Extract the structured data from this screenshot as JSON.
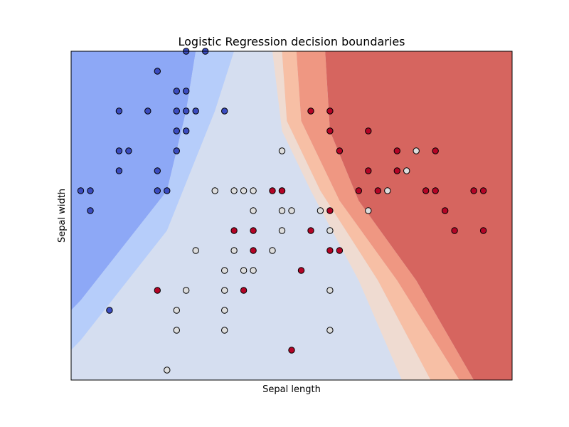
{
  "chart_data": {
    "type": "scatter",
    "title": "Logistic Regression decision boundaries",
    "xlabel": "Sepal length",
    "ylabel": "Sepal width",
    "xlim": [
      3.8,
      8.4
    ],
    "ylim": [
      1.5,
      4.8
    ],
    "xticks": [],
    "yticks": [],
    "grid": false,
    "legend": "none",
    "class_colors": [
      "#3b4cc0",
      "#dddddd",
      "#b40426"
    ],
    "region_colors": [
      "#7185df",
      "#8da8f6",
      "#b6cdfa",
      "#d5def0",
      "#efdbd1",
      "#f7bfa5",
      "#ef9782",
      "#d6655f"
    ],
    "regions": [
      {
        "level": 1,
        "polygon": [
          [
            3.8,
            2.2
          ],
          [
            3.9,
            2.3
          ],
          [
            4.8,
            3.4
          ],
          [
            5.0,
            4.2
          ],
          [
            5.1,
            4.8
          ],
          [
            3.8,
            4.8
          ]
        ]
      },
      {
        "level": 2,
        "polygon": [
          [
            3.8,
            1.8
          ],
          [
            3.9,
            1.9
          ],
          [
            4.8,
            3.0
          ],
          [
            5.3,
            4.2
          ],
          [
            5.5,
            4.8
          ],
          [
            5.1,
            4.8
          ],
          [
            5.0,
            4.2
          ],
          [
            4.8,
            3.4
          ],
          [
            3.9,
            2.3
          ],
          [
            3.8,
            2.2
          ]
        ]
      },
      {
        "level": 3,
        "polygon": [
          [
            3.8,
            1.5
          ],
          [
            7.25,
            1.5
          ],
          [
            6.8,
            2.5
          ],
          [
            6.3,
            3.4
          ],
          [
            6.0,
            4.0
          ],
          [
            5.9,
            4.8
          ],
          [
            5.5,
            4.8
          ],
          [
            5.3,
            4.2
          ],
          [
            4.8,
            3.0
          ],
          [
            3.9,
            1.9
          ],
          [
            3.8,
            1.8
          ]
        ]
      },
      {
        "level": 4,
        "polygon": [
          [
            7.25,
            1.5
          ],
          [
            7.55,
            1.5
          ],
          [
            7.0,
            2.5
          ],
          [
            6.4,
            3.4
          ],
          [
            6.05,
            4.1
          ],
          [
            6.0,
            4.8
          ],
          [
            5.9,
            4.8
          ],
          [
            6.0,
            4.0
          ],
          [
            6.3,
            3.4
          ],
          [
            6.8,
            2.5
          ]
        ]
      },
      {
        "level": 5,
        "polygon": [
          [
            7.55,
            1.5
          ],
          [
            7.85,
            1.5
          ],
          [
            7.2,
            2.5
          ],
          [
            6.6,
            3.3
          ],
          [
            6.2,
            4.1
          ],
          [
            6.15,
            4.8
          ],
          [
            6.0,
            4.8
          ],
          [
            6.05,
            4.1
          ],
          [
            6.4,
            3.4
          ],
          [
            7.0,
            2.5
          ]
        ]
      },
      {
        "level": 6,
        "polygon": [
          [
            7.85,
            1.5
          ],
          [
            8.0,
            1.5
          ],
          [
            7.4,
            2.5
          ],
          [
            6.8,
            3.3
          ],
          [
            6.5,
            4.0
          ],
          [
            6.45,
            4.8
          ],
          [
            6.15,
            4.8
          ],
          [
            6.2,
            4.1
          ],
          [
            6.6,
            3.3
          ],
          [
            7.2,
            2.5
          ]
        ]
      },
      {
        "level": 7,
        "polygon": [
          [
            8.0,
            1.5
          ],
          [
            8.4,
            1.5
          ],
          [
            8.4,
            4.8
          ],
          [
            6.45,
            4.8
          ],
          [
            6.5,
            4.0
          ],
          [
            6.8,
            3.3
          ],
          [
            7.4,
            2.5
          ]
        ]
      }
    ],
    "series": [
      {
        "class": 0,
        "points": [
          [
            5.0,
            4.8
          ],
          [
            5.2,
            4.8
          ],
          [
            4.7,
            4.6
          ],
          [
            4.9,
            4.4
          ],
          [
            5.0,
            4.4
          ],
          [
            4.3,
            4.2
          ],
          [
            4.6,
            4.2
          ],
          [
            4.9,
            4.2
          ],
          [
            5.0,
            4.2
          ],
          [
            5.1,
            4.2
          ],
          [
            5.4,
            4.2
          ],
          [
            4.9,
            4.0
          ],
          [
            5.0,
            4.0
          ],
          [
            4.3,
            3.8
          ],
          [
            4.4,
            3.8
          ],
          [
            4.9,
            3.8
          ],
          [
            4.3,
            3.6
          ],
          [
            4.7,
            3.6
          ],
          [
            3.9,
            3.4
          ],
          [
            4.0,
            3.4
          ],
          [
            4.7,
            3.4
          ],
          [
            4.8,
            3.4
          ],
          [
            4.0,
            3.2
          ],
          [
            4.2,
            2.2
          ]
        ]
      },
      {
        "class": 1,
        "points": [
          [
            6.0,
            3.8
          ],
          [
            7.4,
            3.8
          ],
          [
            7.3,
            3.6
          ],
          [
            5.3,
            3.4
          ],
          [
            5.5,
            3.4
          ],
          [
            5.6,
            3.4
          ],
          [
            5.7,
            3.4
          ],
          [
            6.0,
            3.4
          ],
          [
            7.1,
            3.4
          ],
          [
            5.7,
            3.2
          ],
          [
            6.0,
            3.2
          ],
          [
            6.1,
            3.2
          ],
          [
            6.4,
            3.2
          ],
          [
            6.9,
            3.2
          ],
          [
            6.0,
            3.0
          ],
          [
            6.5,
            3.0
          ],
          [
            5.1,
            2.8
          ],
          [
            5.5,
            2.8
          ],
          [
            5.9,
            2.8
          ],
          [
            5.4,
            2.6
          ],
          [
            5.6,
            2.6
          ],
          [
            5.7,
            2.6
          ],
          [
            5.0,
            2.4
          ],
          [
            5.4,
            2.4
          ],
          [
            6.5,
            2.4
          ],
          [
            4.9,
            2.2
          ],
          [
            5.4,
            2.2
          ],
          [
            4.9,
            2.0
          ],
          [
            5.4,
            2.0
          ],
          [
            6.5,
            2.0
          ],
          [
            4.8,
            1.6
          ]
        ]
      },
      {
        "class": 2,
        "points": [
          [
            6.3,
            4.2
          ],
          [
            6.5,
            4.2
          ],
          [
            6.5,
            4.0
          ],
          [
            6.9,
            4.0
          ],
          [
            6.6,
            3.8
          ],
          [
            7.2,
            3.8
          ],
          [
            7.6,
            3.8
          ],
          [
            6.9,
            3.6
          ],
          [
            7.2,
            3.6
          ],
          [
            5.9,
            3.4
          ],
          [
            6.0,
            3.4
          ],
          [
            6.8,
            3.4
          ],
          [
            7.0,
            3.4
          ],
          [
            7.5,
            3.4
          ],
          [
            7.6,
            3.4
          ],
          [
            8.0,
            3.4
          ],
          [
            8.1,
            3.4
          ],
          [
            6.5,
            3.2
          ],
          [
            7.7,
            3.2
          ],
          [
            5.5,
            3.0
          ],
          [
            5.7,
            3.0
          ],
          [
            6.3,
            3.0
          ],
          [
            7.8,
            3.0
          ],
          [
            8.1,
            3.0
          ],
          [
            5.7,
            2.8
          ],
          [
            6.5,
            2.8
          ],
          [
            6.6,
            2.8
          ],
          [
            6.2,
            2.6
          ],
          [
            4.7,
            2.4
          ],
          [
            5.6,
            2.4
          ],
          [
            6.1,
            1.8
          ]
        ]
      }
    ]
  }
}
